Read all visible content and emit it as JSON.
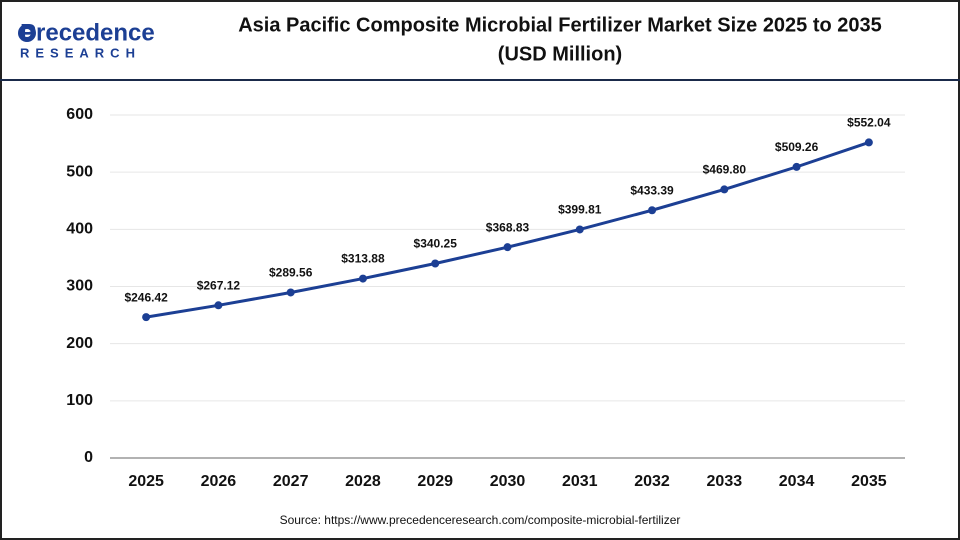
{
  "logo": {
    "name": "Precedence",
    "tagline": "RESEARCH"
  },
  "chart_data": {
    "type": "line",
    "title": [
      "Asia Pacific Composite Microbial Fertilizer Market Size 2025 to 2035",
      "(USD Million)"
    ],
    "categories": [
      "2025",
      "2026",
      "2027",
      "2028",
      "2029",
      "2030",
      "2031",
      "2032",
      "2033",
      "2034",
      "2035"
    ],
    "values": [
      246.42,
      267.12,
      289.56,
      313.88,
      340.25,
      368.83,
      399.81,
      433.39,
      469.8,
      509.26,
      552.04
    ],
    "value_labels": [
      "$246.42",
      "$267.12",
      "$289.56",
      "$313.88",
      "$340.25",
      "$368.83",
      "$399.81",
      "$433.39",
      "$469.80",
      "$509.26",
      "$552.04"
    ],
    "color": "#1c3f94",
    "ylim": [
      0,
      600
    ],
    "yticks": [
      0,
      100,
      200,
      300,
      400,
      500,
      600
    ],
    "grid": true,
    "source": "Source: https://www.precedenceresearch.com/composite-microbial-fertilizer"
  }
}
